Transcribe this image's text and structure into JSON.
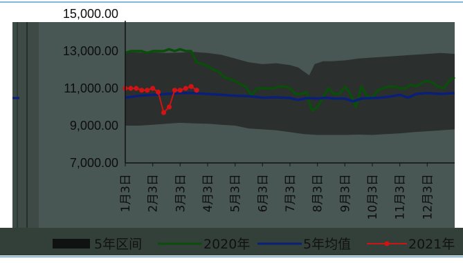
{
  "chart_data": {
    "type": "line",
    "title": "",
    "ylim": [
      7000,
      15000
    ],
    "y_ticks": [
      "15,000.00",
      "13,000.00",
      "11,000.00",
      "9,000.00",
      "7,000.00"
    ],
    "y_tick_values": [
      15000,
      13000,
      11000,
      9000,
      7000
    ],
    "categories": [
      "1月3日",
      "2月3日",
      "3月3日",
      "4月3日",
      "5月3日",
      "6月3日",
      "7月3日",
      "8月3日",
      "9月3日",
      "10月3日",
      "11月3日",
      "12月3日"
    ],
    "x_start": 0,
    "x_end": 12.0,
    "band": {
      "name": "5年区间",
      "color": "#2b2f2d",
      "upper": [
        [
          0,
          12950
        ],
        [
          0.5,
          12920
        ],
        [
          1,
          12930
        ],
        [
          1.5,
          12900
        ],
        [
          2,
          12920
        ],
        [
          2.5,
          12950
        ],
        [
          3,
          12900
        ],
        [
          3.5,
          12800
        ],
        [
          4,
          12600
        ],
        [
          4.5,
          12400
        ],
        [
          5,
          12300
        ],
        [
          5.5,
          12350
        ],
        [
          6,
          12250
        ],
        [
          6.3,
          12120
        ],
        [
          6.7,
          11700
        ],
        [
          6.9,
          12300
        ],
        [
          7.2,
          12450
        ],
        [
          7.5,
          12450
        ],
        [
          8,
          12500
        ],
        [
          8.5,
          12600
        ],
        [
          9,
          12650
        ],
        [
          9.5,
          12700
        ],
        [
          10,
          12750
        ],
        [
          10.5,
          12800
        ],
        [
          11,
          12850
        ],
        [
          11.5,
          12900
        ],
        [
          12,
          12850
        ]
      ],
      "lower": [
        [
          0,
          9000
        ],
        [
          0.5,
          9000
        ],
        [
          1,
          9050
        ],
        [
          1.5,
          9100
        ],
        [
          2,
          9150
        ],
        [
          2.5,
          9120
        ],
        [
          3,
          9100
        ],
        [
          3.5,
          9050
        ],
        [
          4,
          9000
        ],
        [
          4.5,
          8850
        ],
        [
          5,
          8800
        ],
        [
          5.5,
          8750
        ],
        [
          6,
          8650
        ],
        [
          6.5,
          8550
        ],
        [
          7,
          8500
        ],
        [
          7.5,
          8500
        ],
        [
          8,
          8500
        ],
        [
          8.5,
          8520
        ],
        [
          9,
          8500
        ],
        [
          9.5,
          8550
        ],
        [
          10,
          8580
        ],
        [
          10.5,
          8650
        ],
        [
          11,
          8700
        ],
        [
          11.5,
          8750
        ],
        [
          12,
          8800
        ]
      ]
    },
    "series": [
      {
        "name": "2020年",
        "color": "#0b4d0b",
        "points": [
          [
            0,
            12900
          ],
          [
            0.2,
            13000
          ],
          [
            0.4,
            13000
          ],
          [
            0.6,
            13000
          ],
          [
            0.8,
            12900
          ],
          [
            1,
            13000
          ],
          [
            1.2,
            13000
          ],
          [
            1.4,
            13000
          ],
          [
            1.6,
            13100
          ],
          [
            1.8,
            13000
          ],
          [
            2,
            13100
          ],
          [
            2.2,
            13000
          ],
          [
            2.4,
            13000
          ],
          [
            2.6,
            12400
          ],
          [
            2.8,
            12300
          ],
          [
            3,
            12200
          ],
          [
            3.2,
            12000
          ],
          [
            3.4,
            11900
          ],
          [
            3.6,
            11600
          ],
          [
            3.8,
            11500
          ],
          [
            4,
            11400
          ],
          [
            4.2,
            11200
          ],
          [
            4.4,
            11100
          ],
          [
            4.6,
            10600
          ],
          [
            4.8,
            11000
          ],
          [
            5,
            11000
          ],
          [
            5.2,
            11000
          ],
          [
            5.4,
            11000
          ],
          [
            5.6,
            11100
          ],
          [
            5.8,
            11100
          ],
          [
            6,
            11000
          ],
          [
            6.2,
            10700
          ],
          [
            6.4,
            10700
          ],
          [
            6.6,
            10800
          ],
          [
            6.8,
            9800
          ],
          [
            7,
            10000
          ],
          [
            7.2,
            10500
          ],
          [
            7.4,
            11000
          ],
          [
            7.6,
            10700
          ],
          [
            7.8,
            10700
          ],
          [
            8,
            11100
          ],
          [
            8.2,
            10700
          ],
          [
            8.4,
            10000
          ],
          [
            8.6,
            11100
          ],
          [
            8.8,
            10600
          ],
          [
            9,
            10500
          ],
          [
            9.2,
            10900
          ],
          [
            9.4,
            11000
          ],
          [
            9.6,
            11100
          ],
          [
            9.8,
            11100
          ],
          [
            10,
            11000
          ],
          [
            10.2,
            11000
          ],
          [
            10.4,
            11200
          ],
          [
            10.6,
            11100
          ],
          [
            10.8,
            11300
          ],
          [
            11,
            11400
          ],
          [
            11.2,
            11300
          ],
          [
            11.4,
            11100
          ],
          [
            11.6,
            11000
          ],
          [
            11.8,
            11400
          ],
          [
            12,
            11600
          ]
        ]
      },
      {
        "name": "5年均值",
        "color": "#0a1f7a",
        "points": [
          [
            0,
            10500
          ],
          [
            0.5,
            10600
          ],
          [
            1,
            10650
          ],
          [
            1.5,
            10700
          ],
          [
            2,
            10750
          ],
          [
            2.5,
            10750
          ],
          [
            3,
            10700
          ],
          [
            3.5,
            10650
          ],
          [
            4,
            10600
          ],
          [
            4.5,
            10580
          ],
          [
            5,
            10500
          ],
          [
            5.5,
            10520
          ],
          [
            6,
            10480
          ],
          [
            6.3,
            10380
          ],
          [
            6.6,
            10480
          ],
          [
            7,
            10450
          ],
          [
            7.3,
            10500
          ],
          [
            7.6,
            10450
          ],
          [
            8,
            10450
          ],
          [
            8.3,
            10300
          ],
          [
            8.6,
            10450
          ],
          [
            9,
            10480
          ],
          [
            9.3,
            10500
          ],
          [
            9.6,
            10550
          ],
          [
            10,
            10650
          ],
          [
            10.3,
            10500
          ],
          [
            10.6,
            10700
          ],
          [
            11,
            10750
          ],
          [
            11.5,
            10700
          ],
          [
            12,
            10750
          ]
        ]
      },
      {
        "name": "2021年",
        "color": "#d01414",
        "points": [
          [
            0,
            11000
          ],
          [
            0.2,
            11000
          ],
          [
            0.4,
            11000
          ],
          [
            0.6,
            10900
          ],
          [
            0.8,
            10900
          ],
          [
            1,
            11000
          ],
          [
            1.2,
            10800
          ],
          [
            1.4,
            9700
          ],
          [
            1.6,
            10000
          ],
          [
            1.8,
            10900
          ],
          [
            2,
            10900
          ],
          [
            2.2,
            11000
          ],
          [
            2.4,
            11100
          ],
          [
            2.6,
            10900
          ]
        ]
      }
    ]
  }
}
